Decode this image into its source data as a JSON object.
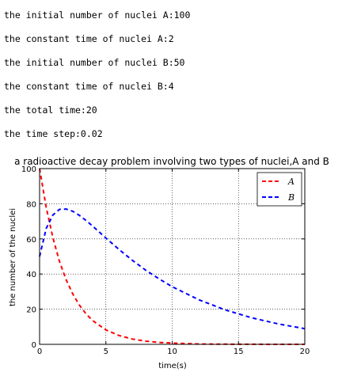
{
  "output_lines": [
    "the initial number of nuclei A:100",
    "the constant time of nuclei A:2",
    "the initial number of nuclei B:50",
    "the constant time of nuclei B:4",
    "the total time:20",
    "the time step:0.02"
  ],
  "chart_data": {
    "type": "line",
    "title": "a radioactive decay problem involving two types of nuclei,A and B",
    "xlabel": "time(s)",
    "ylabel": "the number of the nuclei",
    "xlim": [
      0,
      20
    ],
    "ylim": [
      0,
      100
    ],
    "x_ticks": [
      "0",
      "5",
      "10",
      "15",
      "20"
    ],
    "y_ticks": [
      "0",
      "20",
      "40",
      "60",
      "80",
      "100"
    ],
    "grid": true,
    "legend_position": "top-right",
    "series": [
      {
        "name": "A",
        "color": "#ff0000",
        "style": "dashed",
        "x": [
          0,
          0.5,
          1,
          1.5,
          2,
          2.5,
          3,
          3.5,
          4,
          5,
          6,
          7,
          8,
          9,
          10,
          12,
          14,
          16,
          18,
          20
        ],
        "y": [
          100,
          77.9,
          60.7,
          47.2,
          36.8,
          28.7,
          22.3,
          17.4,
          13.5,
          8.2,
          5.0,
          3.0,
          1.8,
          1.1,
          0.7,
          0.2,
          0.1,
          0.03,
          0.01,
          0
        ]
      },
      {
        "name": "B",
        "color": "#0000ff",
        "style": "dashed",
        "x": [
          0,
          0.5,
          1,
          1.5,
          2,
          2.5,
          3,
          3.5,
          4,
          5,
          6,
          7,
          8,
          9,
          10,
          12,
          14,
          16,
          18,
          20
        ],
        "y": [
          50,
          66.0,
          73.6,
          76.8,
          77.0,
          75.7,
          73.4,
          70.5,
          67.3,
          60.5,
          53.9,
          47.8,
          42.2,
          37.3,
          32.8,
          25.4,
          19.6,
          15.1,
          11.6,
          8.9
        ]
      }
    ]
  }
}
